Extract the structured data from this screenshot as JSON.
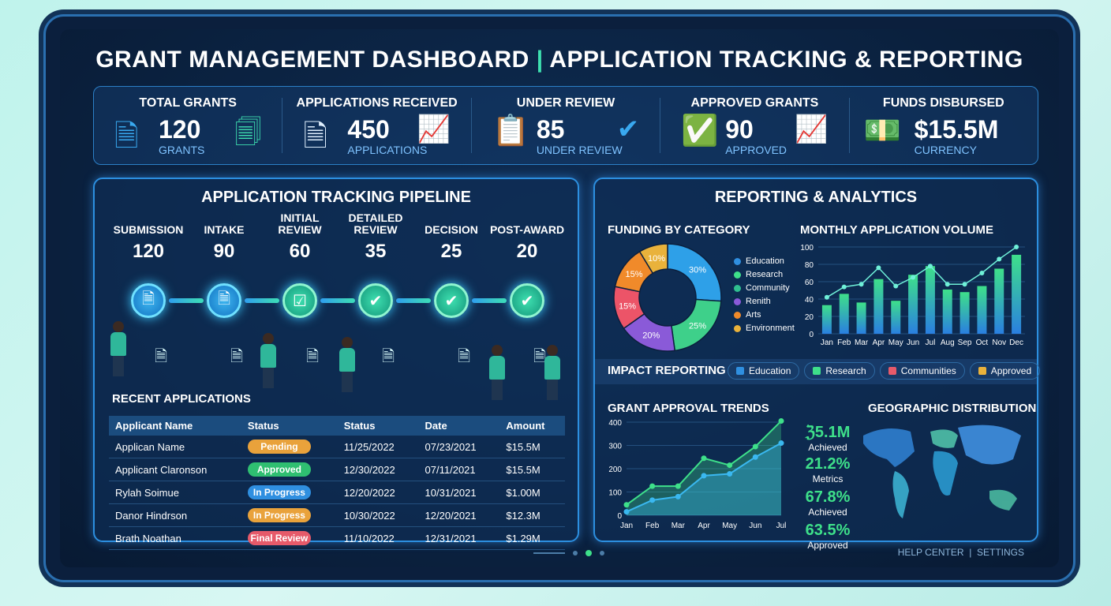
{
  "header": {
    "title_left": "GRANT MANAGEMENT DASHBOARD",
    "separator": "|",
    "title_right": "APPLICATION TRACKING & REPORTING"
  },
  "kpis": [
    {
      "label": "TOTAL GRANTS",
      "value": "120",
      "sub": "GRANTS",
      "icon": "document-icon"
    },
    {
      "label": "APPLICATIONS RECEIVED",
      "value": "450",
      "sub": "APPLICATIONS",
      "icon": "chart-up-icon"
    },
    {
      "label": "UNDER REVIEW",
      "value": "85",
      "sub": "UNDER REVIEW",
      "icon": "checkmark-icon"
    },
    {
      "label": "APPROVED GRANTS",
      "value": "90",
      "sub": "APPROVED",
      "icon": "check-circle-icon"
    },
    {
      "label": "FUNDS DISBURSED",
      "value": "$15.5M",
      "sub": "CURRENCY",
      "icon": "money-icon"
    }
  ],
  "pipeline": {
    "title": "APPLICATION TRACKING PIPELINE",
    "stages": [
      {
        "name": "SUBMISSION",
        "count": "120"
      },
      {
        "name": "INTAKE",
        "count": "90"
      },
      {
        "name": "INITIAL REVIEW",
        "count": "60"
      },
      {
        "name": "DETAILED REVIEW",
        "count": "35"
      },
      {
        "name": "DECISION",
        "count": "25"
      },
      {
        "name": "POST-AWARD",
        "count": "20"
      }
    ]
  },
  "recent": {
    "title": "RECENT APPLICATIONS",
    "columns": [
      "Applicant Name",
      "Status",
      "Status",
      "Date",
      "Amount"
    ],
    "rows": [
      {
        "name": "Applican Name",
        "status": "Pending",
        "color": "#e9a23b",
        "date1": "11/25/2022",
        "date2": "07/23/2021",
        "amount": "$15.5M"
      },
      {
        "name": "Applicant Claronson",
        "status": "Approved",
        "color": "#2fbf71",
        "date1": "12/30/2022",
        "date2": "07/11/2021",
        "amount": "$15.5M"
      },
      {
        "name": "Rylah Soimue",
        "status": "In Progress",
        "color": "#2f8fe0",
        "date1": "12/20/2022",
        "date2": "10/31/2021",
        "amount": "$1.00M"
      },
      {
        "name": "Danor Hindrson",
        "status": "In Progress",
        "color": "#e9a23b",
        "date1": "10/30/2022",
        "date2": "12/20/2021",
        "amount": "$12.3M"
      },
      {
        "name": "Brath Noathan",
        "status": "Final Review",
        "color": "#e65a6a",
        "date1": "11/10/2022",
        "date2": "12/31/2021",
        "amount": "$1.29M"
      }
    ]
  },
  "reporting": {
    "title": "REPORTING & ANALYTICS",
    "impact_title": "IMPACT REPORTING",
    "impact_chips": [
      {
        "label": "Education",
        "color": "#2f8fe0"
      },
      {
        "label": "Research",
        "color": "#3ee08a"
      },
      {
        "label": "Communities",
        "color": "#e65a6a"
      },
      {
        "label": "Approved",
        "color": "#e9b23b"
      }
    ],
    "geo_title": "GEOGRAPHIC DISTRIBUTION",
    "stats": [
      {
        "value": "ℨ5.1M",
        "label": "Achieved"
      },
      {
        "value": "21.2%",
        "label": "Metrics"
      },
      {
        "value": "67.8%",
        "label": "Achieved"
      },
      {
        "value": "63.5%",
        "label": "Approved"
      }
    ]
  },
  "footer": {
    "help": "HELP CENTER",
    "sep": "|",
    "settings": "SETTINGS"
  },
  "chart_data": [
    {
      "type": "pie",
      "title": "FUNDING BY CATEGORY",
      "legend": [
        "Education",
        "Research",
        "Community",
        "Renith",
        "Arts",
        "Environment"
      ],
      "slices": [
        {
          "label": "30%",
          "value": 30,
          "color": "#2ea0e8"
        },
        {
          "label": "25%",
          "value": 25,
          "color": "#3ed08a"
        },
        {
          "label": "20%",
          "value": 20,
          "color": "#8a5ad8"
        },
        {
          "label": "15%",
          "value": 15,
          "color": "#ec5468"
        },
        {
          "label": "15%",
          "value": 15,
          "color": "#f08a2a"
        },
        {
          "label": "10%",
          "value": 10,
          "color": "#e9b23b"
        }
      ],
      "legend_colors": [
        "#2f8fe0",
        "#3ee08a",
        "#2fbf8f",
        "#8a5ad8",
        "#f08a2a",
        "#e9b23b"
      ]
    },
    {
      "type": "bar",
      "title": "MONTHLY APPLICATION VOLUME",
      "categories": [
        "Jan",
        "Feb",
        "Mar",
        "Apr",
        "May",
        "Jun",
        "Jul",
        "Aug",
        "Sep",
        "Oct",
        "Nov",
        "Dec"
      ],
      "ylim": [
        0,
        100
      ],
      "yticks": [
        0,
        20,
        40,
        60,
        80,
        100
      ],
      "bars": [
        33,
        46,
        36,
        63,
        38,
        68,
        78,
        51,
        48,
        55,
        75,
        91
      ],
      "line": [
        42,
        54,
        57,
        76,
        55,
        65,
        78,
        57,
        57,
        70,
        86,
        100
      ]
    },
    {
      "type": "area",
      "title": "GRANT APPROVAL TRENDS",
      "categories": [
        "Jan",
        "Feb",
        "Mar",
        "Apr",
        "May",
        "Jun",
        "Jul"
      ],
      "ylim": [
        0,
        400
      ],
      "yticks": [
        0,
        100,
        200,
        300,
        400
      ],
      "series": [
        {
          "values": [
            45,
            125,
            125,
            245,
            215,
            295,
            405
          ],
          "color": "#3ee08a"
        },
        {
          "values": [
            15,
            65,
            80,
            170,
            178,
            250,
            310
          ],
          "color": "#3ab8f0"
        }
      ]
    }
  ]
}
